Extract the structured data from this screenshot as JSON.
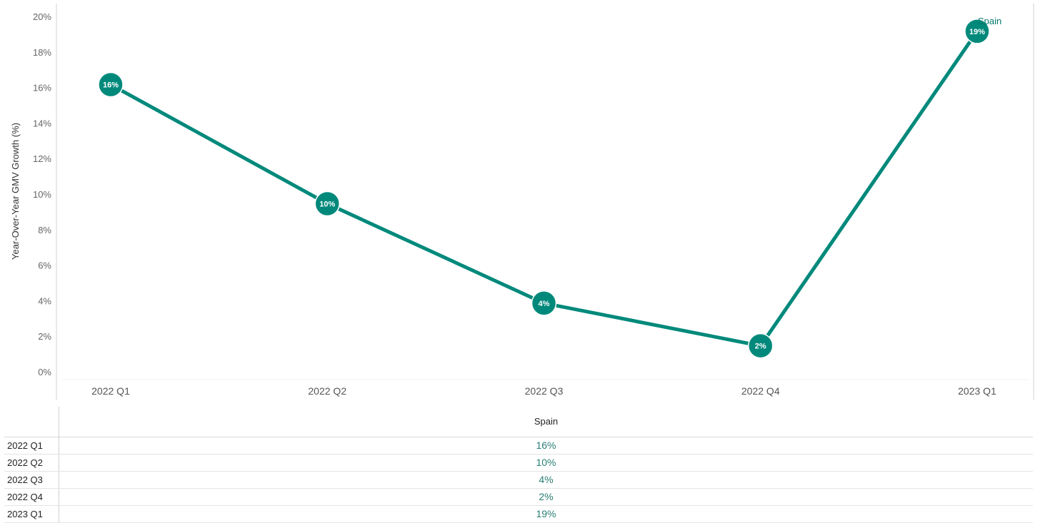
{
  "chart_data": {
    "type": "line",
    "title": "",
    "xlabel": "",
    "ylabel": "Year-Over-Year GMV Growth (%)",
    "categories": [
      "2022 Q1",
      "2022 Q2",
      "2022 Q3",
      "2022 Q4",
      "2023 Q1"
    ],
    "series": [
      {
        "name": "Spain",
        "values": [
          16.2,
          9.5,
          3.9,
          1.5,
          19.2
        ],
        "labels": [
          "16%",
          "10%",
          "4%",
          "2%",
          "19%"
        ]
      }
    ],
    "ylim": [
      0,
      20
    ],
    "yticks": [
      "0%",
      "2%",
      "4%",
      "6%",
      "8%",
      "10%",
      "12%",
      "14%",
      "16%",
      "18%",
      "20%"
    ],
    "grid": false,
    "legend": "none",
    "color": "#00897b"
  },
  "table": {
    "column_header": "Spain",
    "rows": [
      {
        "label": "2022 Q1",
        "value": "16%"
      },
      {
        "label": "2022 Q2",
        "value": "10%"
      },
      {
        "label": "2022 Q3",
        "value": "4%"
      },
      {
        "label": "2022 Q4",
        "value": "2%"
      },
      {
        "label": "2023 Q1",
        "value": "19%"
      }
    ]
  }
}
